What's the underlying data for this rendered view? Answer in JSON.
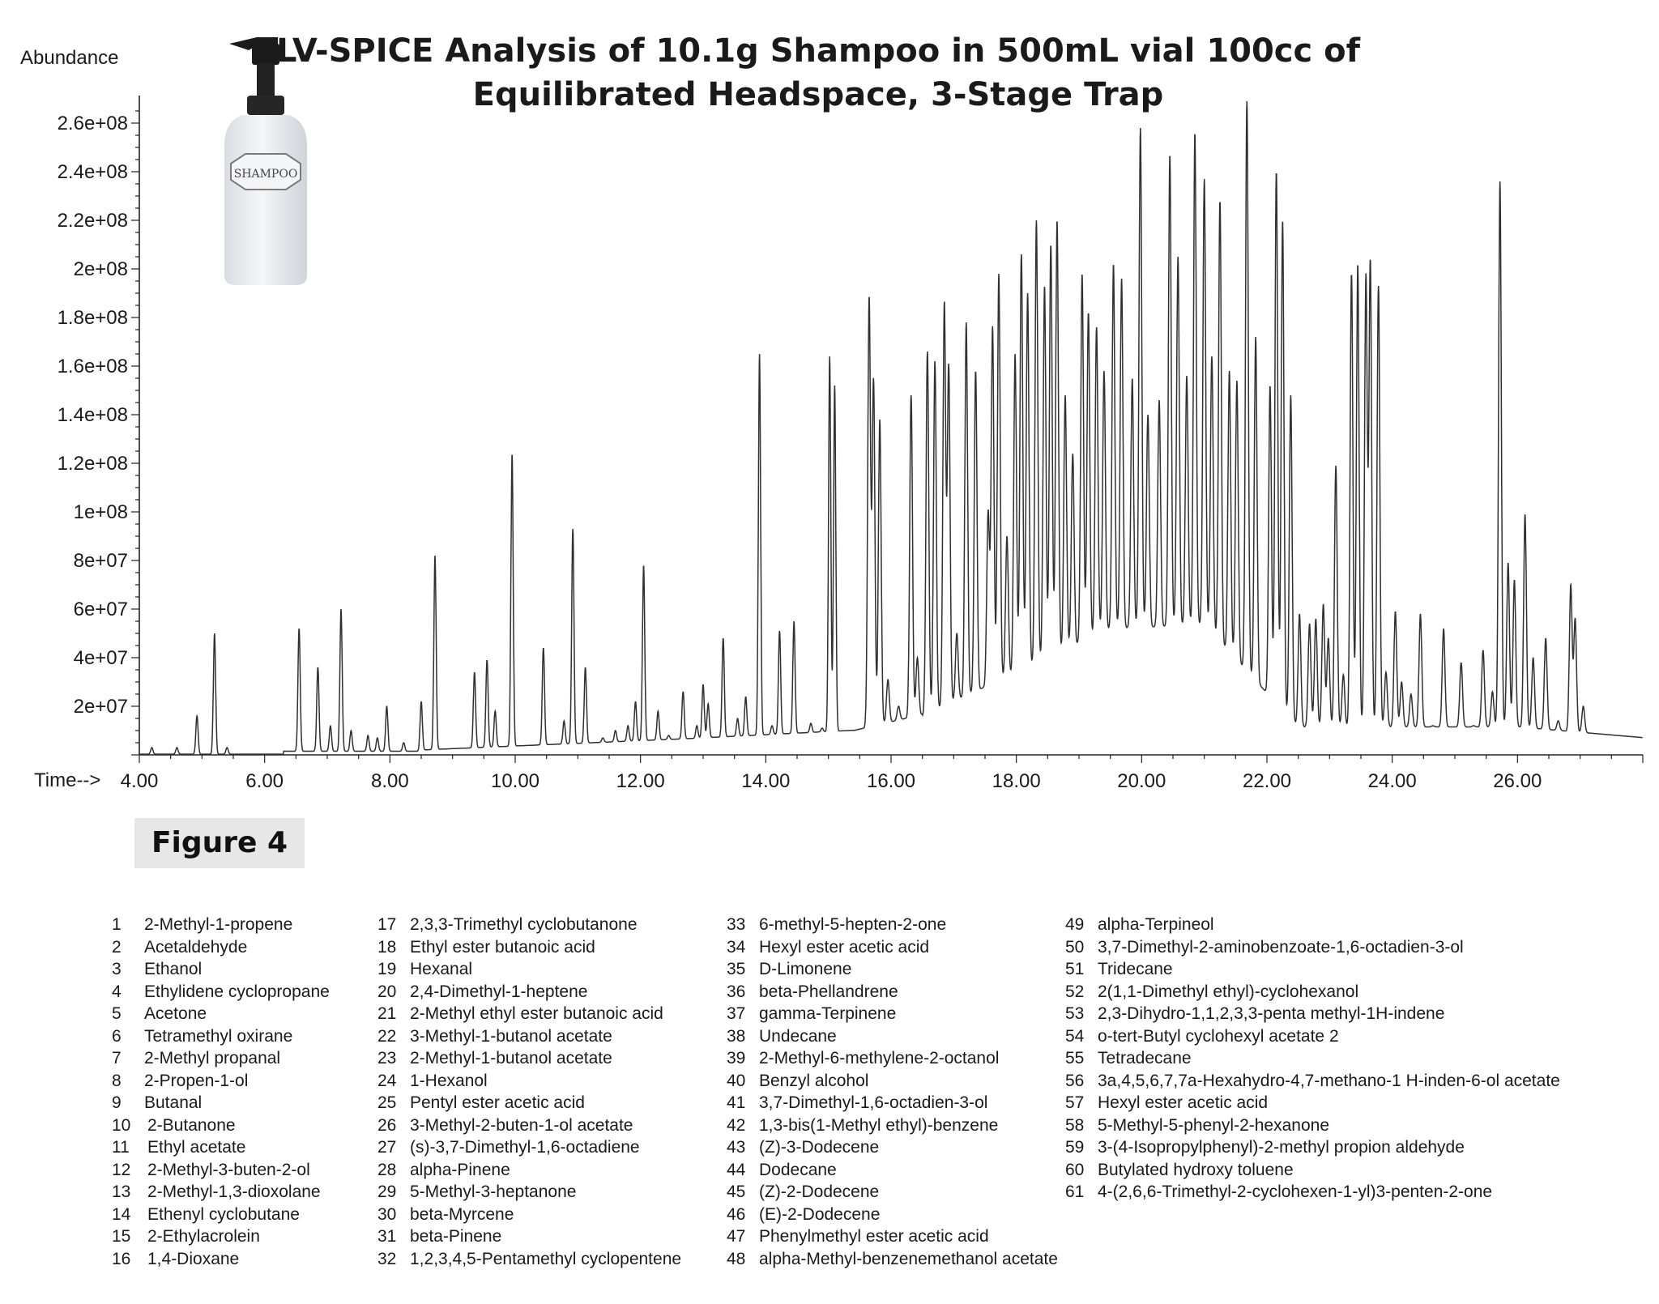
{
  "title_lines": [
    "LV-SPICE Analysis of 10.1g Shampoo in 500mL vial 100cc of",
    "Equilibrated Headspace, 3-Stage Trap"
  ],
  "bottle_label": "SHAMPOO",
  "figure_label": "Figure 4",
  "chart_data": {
    "type": "line",
    "title": "LV-SPICE Analysis of 10.1g Shampoo in 500mL vial 100cc of Equilibrated Headspace, 3-Stage Trap",
    "xlabel": "Time-->",
    "ylabel": "Abundance",
    "xlim": [
      4.0,
      28.0
    ],
    "ylim": [
      0,
      270000000.0
    ],
    "x_ticks": [
      "4.00",
      "6.00",
      "8.00",
      "10.00",
      "12.00",
      "14.00",
      "16.00",
      "18.00",
      "20.00",
      "22.00",
      "24.00",
      "26.00"
    ],
    "y_ticks": [
      "2e+07",
      "4e+07",
      "6e+07",
      "8e+07",
      "1e+08",
      "1.2e+08",
      "1.4e+08",
      "1.6e+08",
      "1.8e+08",
      "2e+08",
      "2.2e+08",
      "2.4e+08",
      "2.6e+08"
    ],
    "grid": false,
    "peaks": [
      [
        4.2,
        3000000.0
      ],
      [
        4.6,
        3000000.0
      ],
      [
        4.92,
        16000000.0
      ],
      [
        5.2,
        50000000.0
      ],
      [
        5.4,
        3000000.0
      ],
      [
        6.55,
        52000000.0
      ],
      [
        6.85,
        36000000.0
      ],
      [
        7.05,
        12000000.0
      ],
      [
        7.22,
        60000000.0
      ],
      [
        7.38,
        10000000.0
      ],
      [
        7.65,
        8000000.0
      ],
      [
        7.8,
        7000000.0
      ],
      [
        7.95,
        20000000.0
      ],
      [
        8.22,
        5000000.0
      ],
      [
        8.5,
        22000000.0
      ],
      [
        8.72,
        82000000.0
      ],
      [
        9.35,
        34000000.0
      ],
      [
        9.55,
        39000000.0
      ],
      [
        9.68,
        18000000.0
      ],
      [
        9.95,
        124000000.0
      ],
      [
        10.45,
        44000000.0
      ],
      [
        10.78,
        14000000.0
      ],
      [
        10.92,
        93000000.0
      ],
      [
        11.12,
        36000000.0
      ],
      [
        11.4,
        7000000.0
      ],
      [
        11.6,
        10000000.0
      ],
      [
        11.8,
        12000000.0
      ],
      [
        11.92,
        22000000.0
      ],
      [
        12.05,
        78000000.0
      ],
      [
        12.28,
        18000000.0
      ],
      [
        12.45,
        8000000.0
      ],
      [
        12.68,
        26000000.0
      ],
      [
        12.9,
        12000000.0
      ],
      [
        13.0,
        29000000.0
      ],
      [
        13.08,
        21000000.0
      ],
      [
        13.32,
        48000000.0
      ],
      [
        13.55,
        15000000.0
      ],
      [
        13.68,
        24000000.0
      ],
      [
        13.9,
        165000000.0
      ],
      [
        14.1,
        12000000.0
      ],
      [
        14.22,
        51000000.0
      ],
      [
        14.45,
        55000000.0
      ],
      [
        14.72,
        13000000.0
      ],
      [
        14.9,
        11000000.0
      ],
      [
        15.02,
        164000000.0
      ],
      [
        15.1,
        152000000.0
      ],
      [
        15.38,
        10000000.0
      ],
      [
        15.65,
        188000000.0
      ],
      [
        15.72,
        154000000.0
      ],
      [
        15.82,
        138000000.0
      ],
      [
        15.95,
        31000000.0
      ],
      [
        16.12,
        20000000.0
      ],
      [
        16.32,
        148000000.0
      ],
      [
        16.42,
        40000000.0
      ],
      [
        16.58,
        166000000.0
      ],
      [
        16.7,
        162000000.0
      ],
      [
        16.85,
        186000000.0
      ],
      [
        16.92,
        160000000.0
      ],
      [
        17.05,
        50000000.0
      ],
      [
        17.2,
        178000000.0
      ],
      [
        17.35,
        158000000.0
      ],
      [
        17.55,
        100000000.0
      ],
      [
        17.62,
        176000000.0
      ],
      [
        17.72,
        198000000.0
      ],
      [
        17.85,
        90000000.0
      ],
      [
        17.98,
        165000000.0
      ],
      [
        18.08,
        206000000.0
      ],
      [
        18.18,
        190000000.0
      ],
      [
        18.32,
        220000000.0
      ],
      [
        18.45,
        193000000.0
      ],
      [
        18.55,
        210000000.0
      ],
      [
        18.65,
        220000000.0
      ],
      [
        18.78,
        148000000.0
      ],
      [
        18.9,
        124000000.0
      ],
      [
        19.05,
        198000000.0
      ],
      [
        19.15,
        182000000.0
      ],
      [
        19.28,
        176000000.0
      ],
      [
        19.4,
        158000000.0
      ],
      [
        19.55,
        202000000.0
      ],
      [
        19.68,
        196000000.0
      ],
      [
        19.85,
        155000000.0
      ],
      [
        19.98,
        258000000.0
      ],
      [
        20.1,
        140000000.0
      ],
      [
        20.28,
        146000000.0
      ],
      [
        20.45,
        247000000.0
      ],
      [
        20.58,
        205000000.0
      ],
      [
        20.72,
        156000000.0
      ],
      [
        20.85,
        256000000.0
      ],
      [
        21.0,
        237000000.0
      ],
      [
        21.12,
        164000000.0
      ],
      [
        21.25,
        228000000.0
      ],
      [
        21.4,
        158000000.0
      ],
      [
        21.52,
        154000000.0
      ],
      [
        21.68,
        269000000.0
      ],
      [
        21.82,
        172000000.0
      ],
      [
        22.05,
        152000000.0
      ],
      [
        22.15,
        240000000.0
      ],
      [
        22.25,
        220000000.0
      ],
      [
        22.38,
        148000000.0
      ],
      [
        22.52,
        58000000.0
      ],
      [
        22.68,
        54000000.0
      ],
      [
        22.78,
        56000000.0
      ],
      [
        22.9,
        62000000.0
      ],
      [
        22.98,
        48000000.0
      ],
      [
        23.1,
        119000000.0
      ],
      [
        23.22,
        33000000.0
      ],
      [
        23.35,
        198000000.0
      ],
      [
        23.45,
        202000000.0
      ],
      [
        23.58,
        197000000.0
      ],
      [
        23.65,
        203000000.0
      ],
      [
        23.78,
        193000000.0
      ],
      [
        23.9,
        34000000.0
      ],
      [
        24.05,
        59000000.0
      ],
      [
        24.15,
        30000000.0
      ],
      [
        24.3,
        25000000.0
      ],
      [
        24.45,
        58000000.0
      ],
      [
        24.65,
        12000000.0
      ],
      [
        24.82,
        52000000.0
      ],
      [
        25.1,
        38000000.0
      ],
      [
        25.3,
        12000000.0
      ],
      [
        25.45,
        43000000.0
      ],
      [
        25.6,
        26000000.0
      ],
      [
        25.72,
        236000000.0
      ],
      [
        25.85,
        79000000.0
      ],
      [
        25.95,
        72000000.0
      ],
      [
        26.12,
        99000000.0
      ],
      [
        26.25,
        40000000.0
      ],
      [
        26.45,
        48000000.0
      ],
      [
        26.65,
        14000000.0
      ],
      [
        26.85,
        70000000.0
      ],
      [
        26.92,
        56000000.0
      ],
      [
        27.05,
        20000000.0
      ],
      [
        27.2,
        3000000.0
      ],
      [
        27.5,
        3000000.0
      ],
      [
        27.7,
        3000000.0
      ]
    ]
  },
  "legend_columns": [
    [
      {
        "n": "1",
        "name": "2-Methyl-1-propene"
      },
      {
        "n": "2",
        "name": "Acetaldehyde"
      },
      {
        "n": "3",
        "name": "Ethanol"
      },
      {
        "n": "4",
        "name": "Ethylidene cyclopropane"
      },
      {
        "n": "5",
        "name": "Acetone"
      },
      {
        "n": "6",
        "name": "Tetramethyl oxirane"
      },
      {
        "n": "7",
        "name": "2-Methyl propanal"
      },
      {
        "n": "8",
        "name": "2-Propen-1-ol"
      },
      {
        "n": "9",
        "name": "Butanal"
      },
      {
        "n": "10",
        "name": "2-Butanone"
      },
      {
        "n": "11",
        "name": "Ethyl acetate"
      },
      {
        "n": "12",
        "name": "2-Methyl-3-buten-2-ol"
      },
      {
        "n": "13",
        "name": "2-Methyl-1,3-dioxolane"
      },
      {
        "n": "14",
        "name": "Ethenyl cyclobutane"
      },
      {
        "n": "15",
        "name": "2-Ethylacrolein"
      },
      {
        "n": "16",
        "name": "1,4-Dioxane"
      }
    ],
    [
      {
        "n": "17",
        "name": "2,3,3-Trimethyl cyclobutanone"
      },
      {
        "n": "18",
        "name": "Ethyl ester butanoic acid"
      },
      {
        "n": "19",
        "name": "Hexanal"
      },
      {
        "n": "20",
        "name": "2,4-Dimethyl-1-heptene"
      },
      {
        "n": "21",
        "name": "2-Methyl ethyl ester butanoic acid"
      },
      {
        "n": "22",
        "name": "3-Methyl-1-butanol acetate"
      },
      {
        "n": "23",
        "name": "2-Methyl-1-butanol acetate"
      },
      {
        "n": "24",
        "name": "1-Hexanol"
      },
      {
        "n": "25",
        "name": "Pentyl ester acetic acid"
      },
      {
        "n": "26",
        "name": "3-Methyl-2-buten-1-ol acetate"
      },
      {
        "n": "27",
        "name": "(s)-3,7-Dimethyl-1,6-octadiene"
      },
      {
        "n": "28",
        "name": "alpha-Pinene"
      },
      {
        "n": "29",
        "name": "5-Methyl-3-heptanone"
      },
      {
        "n": "30",
        "name": "beta-Myrcene"
      },
      {
        "n": "31",
        "name": "beta-Pinene"
      },
      {
        "n": "32",
        "name": "1,2,3,4,5-Pentamethyl cyclopentene"
      }
    ],
    [
      {
        "n": "33",
        "name": "6-methyl-5-hepten-2-one"
      },
      {
        "n": "34",
        "name": "Hexyl ester acetic acid"
      },
      {
        "n": "35",
        "name": "D-Limonene"
      },
      {
        "n": "36",
        "name": "beta-Phellandrene"
      },
      {
        "n": "37",
        "name": "gamma-Terpinene"
      },
      {
        "n": "38",
        "name": "Undecane"
      },
      {
        "n": "39",
        "name": "2-Methyl-6-methylene-2-octanol"
      },
      {
        "n": "40",
        "name": "Benzyl alcohol"
      },
      {
        "n": "41",
        "name": "3,7-Dimethyl-1,6-octadien-3-ol"
      },
      {
        "n": "42",
        "name": "1,3-bis(1-Methyl ethyl)-benzene"
      },
      {
        "n": "43",
        "name": "(Z)-3-Dodecene"
      },
      {
        "n": "44",
        "name": "Dodecane"
      },
      {
        "n": "45",
        "name": "(Z)-2-Dodecene"
      },
      {
        "n": "46",
        "name": "(E)-2-Dodecene"
      },
      {
        "n": "47",
        "name": "Phenylmethyl ester acetic acid"
      },
      {
        "n": "48",
        "name": "alpha-Methyl-benzenemethanol acetate"
      }
    ],
    [
      {
        "n": "49",
        "name": "alpha-Terpineol"
      },
      {
        "n": "50",
        "name": "3,7-Dimethyl-2-aminobenzoate-1,6-octadien-3-ol"
      },
      {
        "n": "51",
        "name": "Tridecane"
      },
      {
        "n": "52",
        "name": "2(1,1-Dimethyl ethyl)-cyclohexanol"
      },
      {
        "n": "53",
        "name": "2,3-Dihydro-1,1,2,3,3-penta methyl-1H-indene"
      },
      {
        "n": "54",
        "name": "o-tert-Butyl cyclohexyl acetate 2"
      },
      {
        "n": "55",
        "name": "Tetradecane"
      },
      {
        "n": "56",
        "name": "3a,4,5,6,7,7a-Hexahydro-4,7-methano-1 H-inden-6-ol acetate"
      },
      {
        "n": "57",
        "name": "Hexyl ester acetic acid"
      },
      {
        "n": "58",
        "name": "5-Methyl-5-phenyl-2-hexanone"
      },
      {
        "n": "59",
        "name": "3-(4-Isopropylphenyl)-2-methyl propion aldehyde"
      },
      {
        "n": "60",
        "name": "Butylated hydroxy toluene"
      },
      {
        "n": "61",
        "name": "4-(2,6,6-Trimethyl-2-cyclohexen-1-yl)3-penten-2-one"
      }
    ]
  ]
}
